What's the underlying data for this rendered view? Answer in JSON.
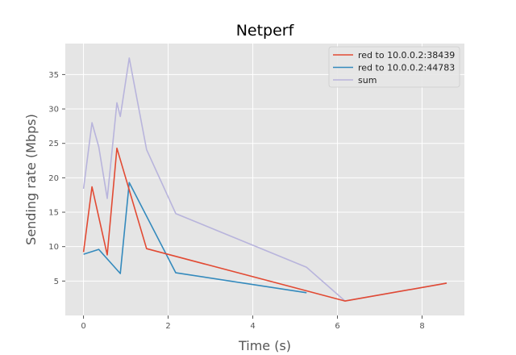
{
  "chart_data": {
    "type": "line",
    "title": "Netperf",
    "xlabel": "Time (s)",
    "ylabel": "Sending rate (Mbps)",
    "xlim": [
      -0.43,
      9.0
    ],
    "ylim": [
      0.0,
      39.5
    ],
    "xticks": [
      0,
      2,
      4,
      6,
      8
    ],
    "yticks": [
      5,
      10,
      15,
      20,
      25,
      30,
      35
    ],
    "grid": true,
    "legend_position": "top-right",
    "background": "#e5e5e5",
    "series": [
      {
        "name": "red to 10.0.0.2:38439",
        "color": "#e24a33",
        "x": [
          0.0,
          0.2,
          0.56,
          0.79,
          1.49,
          6.18,
          8.58
        ],
        "y": [
          9.2,
          18.7,
          8.8,
          24.3,
          9.7,
          2.1,
          4.7
        ]
      },
      {
        "name": "red to 10.0.0.2:44783",
        "color": "#348abd",
        "x": [
          0.0,
          0.36,
          0.87,
          1.08,
          2.18,
          5.27
        ],
        "y": [
          8.9,
          9.6,
          6.1,
          19.3,
          6.2,
          3.3
        ]
      },
      {
        "name": "sum",
        "color": "#b8b4dc",
        "x": [
          0.0,
          0.2,
          0.36,
          0.56,
          0.79,
          0.87,
          1.08,
          1.49,
          2.18,
          5.27,
          6.18,
          8.58
        ],
        "y": [
          18.4,
          28.0,
          24.5,
          17.0,
          30.9,
          28.9,
          37.4,
          24.1,
          14.8,
          7.0,
          2.1,
          4.7
        ]
      }
    ]
  }
}
